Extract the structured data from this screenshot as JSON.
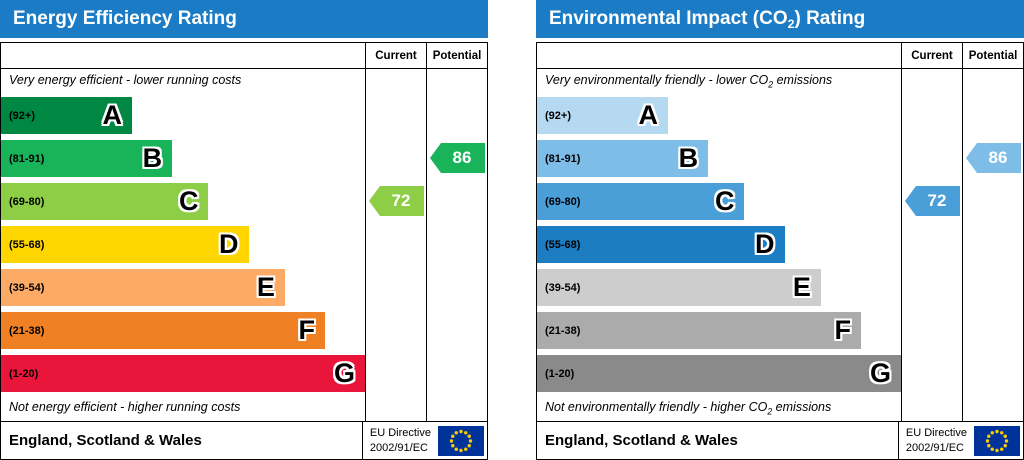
{
  "chart_data": [
    {
      "type": "bar",
      "key": "energy-efficiency-rating",
      "title": {
        "pre": "Energy Efficiency Rating",
        "sub": "",
        "post": ""
      },
      "header_color": "#1b7cc5",
      "columns": {
        "current": "Current",
        "potential": "Potential"
      },
      "top_text": {
        "pre": "Very energy efficient - lower running costs",
        "sub": "",
        "post": ""
      },
      "bottom_text": {
        "pre": "Not energy efficient - higher running costs",
        "sub": "",
        "post": ""
      },
      "categories": [
        "A",
        "B",
        "C",
        "D",
        "E",
        "F",
        "G"
      ],
      "bands": [
        {
          "letter": "A",
          "range": "(92+)",
          "color": "#008842",
          "width_pct": 36
        },
        {
          "letter": "B",
          "range": "(81-91)",
          "color": "#19b459",
          "width_pct": 47
        },
        {
          "letter": "C",
          "range": "(69-80)",
          "color": "#8dce46",
          "width_pct": 57
        },
        {
          "letter": "D",
          "range": "(55-68)",
          "color": "#ffd500",
          "width_pct": 68
        },
        {
          "letter": "E",
          "range": "(39-54)",
          "color": "#fcaa65",
          "width_pct": 78
        },
        {
          "letter": "F",
          "range": "(21-38)",
          "color": "#ef8023",
          "width_pct": 89
        },
        {
          "letter": "G",
          "range": "(1-20)",
          "color": "#e9153b",
          "width_pct": 100
        }
      ],
      "current": {
        "value": "72",
        "band": "C",
        "band_index": 2,
        "color": "#8dce46"
      },
      "potential": {
        "value": "86",
        "band": "B",
        "band_index": 1,
        "color": "#19b459"
      },
      "footer": {
        "region": "England, Scotland & Wales",
        "directive_line1": "EU Directive",
        "directive_line2": "2002/91/EC"
      },
      "flag_colors": {
        "background": "#003399",
        "stars": "#ffcc00"
      }
    },
    {
      "type": "bar",
      "key": "environmental-impact-co2-rating",
      "title": {
        "pre": "Environmental Impact (CO",
        "sub": "2",
        "post": ") Rating"
      },
      "header_color": "#1b7cc5",
      "columns": {
        "current": "Current",
        "potential": "Potential"
      },
      "top_text": {
        "pre": "Very environmentally friendly - lower CO",
        "sub": "2",
        "post": " emissions"
      },
      "bottom_text": {
        "pre": "Not environmentally friendly - higher CO",
        "sub": "2",
        "post": " emissions"
      },
      "categories": [
        "A",
        "B",
        "C",
        "D",
        "E",
        "F",
        "G"
      ],
      "bands": [
        {
          "letter": "A",
          "range": "(92+)",
          "color": "#b5d9f0",
          "width_pct": 36
        },
        {
          "letter": "B",
          "range": "(81-91)",
          "color": "#7fbde9",
          "width_pct": 47
        },
        {
          "letter": "C",
          "range": "(69-80)",
          "color": "#4a9fd8",
          "width_pct": 57
        },
        {
          "letter": "D",
          "range": "(55-68)",
          "color": "#1d7dc2",
          "width_pct": 68
        },
        {
          "letter": "E",
          "range": "(39-54)",
          "color": "#cdcdcd",
          "width_pct": 78
        },
        {
          "letter": "F",
          "range": "(21-38)",
          "color": "#ababab",
          "width_pct": 89
        },
        {
          "letter": "G",
          "range": "(1-20)",
          "color": "#8a8a8a",
          "width_pct": 100
        }
      ],
      "current": {
        "value": "72",
        "band": "C",
        "band_index": 2,
        "color": "#4a9fd8"
      },
      "potential": {
        "value": "86",
        "band": "B",
        "band_index": 1,
        "color": "#7fbde9"
      },
      "footer": {
        "region": "England, Scotland & Wales",
        "directive_line1": "EU Directive",
        "directive_line2": "2002/91/EC"
      },
      "flag_colors": {
        "background": "#003399",
        "stars": "#ffcc00"
      }
    }
  ]
}
